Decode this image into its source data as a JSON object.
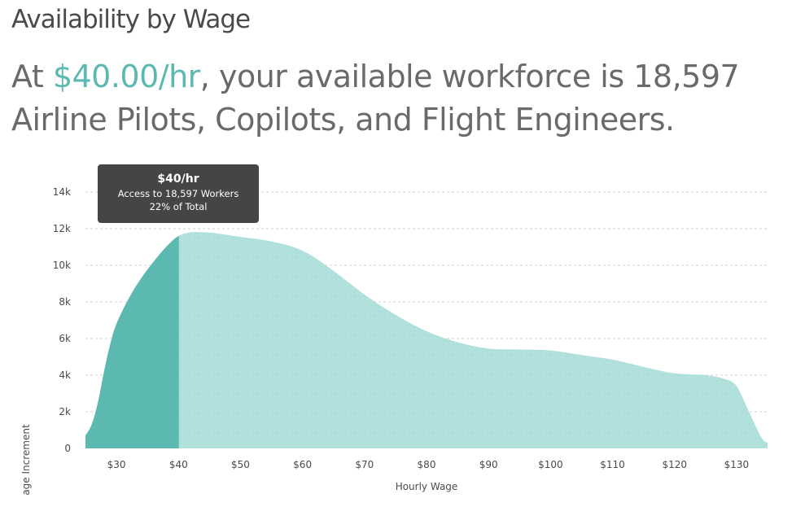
{
  "header": {
    "title": "Availability by Wage",
    "headline_prefix": "At ",
    "headline_wage": "$40.00/hr",
    "headline_mid": ", your available workforce is 18,597",
    "headline_suffix": "Airline Pilots, Copilots, and Flight Engineers."
  },
  "tooltip": {
    "title": "$40/hr",
    "line1": "Access to 18,597 Workers",
    "line2": "22% of Total"
  },
  "colors": {
    "selected_fill": "#5bb9b0",
    "area_fill": "#b0e0dc",
    "grid": "#cfcfcf",
    "tooltip_bg": "#454545"
  },
  "chart_data": {
    "type": "area",
    "xlabel": "Hourly Wage",
    "ylabel": "age Increment",
    "xlim": [
      25,
      135
    ],
    "ylim": [
      0,
      14000
    ],
    "x_ticks": [
      30,
      40,
      50,
      60,
      70,
      80,
      90,
      100,
      110,
      120,
      130
    ],
    "x_tick_labels": [
      "$30",
      "$40",
      "$50",
      "$60",
      "$70",
      "$80",
      "$90",
      "$100",
      "$110",
      "$120",
      "$130"
    ],
    "y_ticks": [
      0,
      2000,
      4000,
      6000,
      8000,
      10000,
      12000,
      14000
    ],
    "y_tick_labels": [
      "0",
      "2k",
      "4k",
      "6k",
      "8k",
      "10k",
      "12k",
      "14k"
    ],
    "grid": true,
    "selected_x": 40,
    "x": [
      25,
      26,
      27,
      28,
      29,
      30,
      32,
      34,
      36,
      38,
      40,
      42,
      44,
      46,
      50,
      55,
      60,
      65,
      70,
      75,
      80,
      85,
      90,
      95,
      100,
      105,
      110,
      115,
      120,
      125,
      128,
      130,
      132,
      134,
      135
    ],
    "values": [
      700,
      1300,
      2500,
      4200,
      5700,
      6800,
      8200,
      9300,
      10200,
      11000,
      11600,
      11800,
      11800,
      11750,
      11550,
      11300,
      10800,
      9700,
      8400,
      7300,
      6400,
      5800,
      5450,
      5400,
      5350,
      5100,
      4850,
      4450,
      4100,
      4000,
      3800,
      3400,
      2000,
      600,
      300
    ]
  }
}
